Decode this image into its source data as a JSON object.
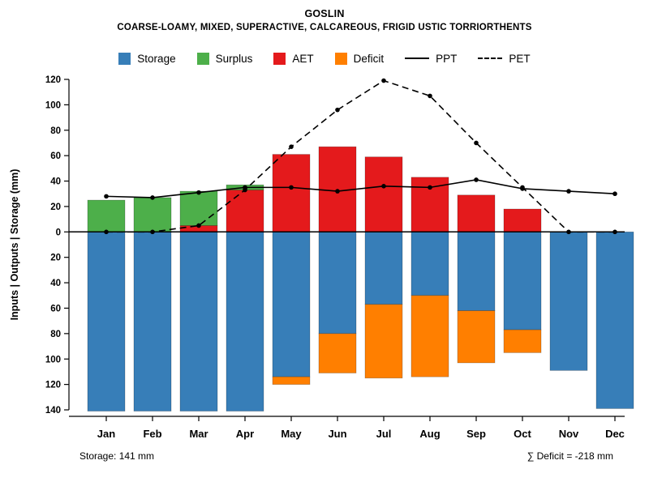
{
  "chart_data": {
    "type": "bar",
    "title": "GOSLIN",
    "subtitle": "COARSE-LOAMY, MIXED, SUPERACTIVE, CALCAREOUS, FRIGID USTIC TORRIORTHENTS",
    "ylabel": "Inputs | Outputs | Storage   (mm)",
    "categories": [
      "Jan",
      "Feb",
      "Mar",
      "Apr",
      "May",
      "Jun",
      "Jul",
      "Aug",
      "Sep",
      "Oct",
      "Nov",
      "Dec"
    ],
    "ylim": [
      -140,
      120
    ],
    "ytick_step": 20,
    "grid": false,
    "legend_position": "top",
    "series": [
      {
        "name": "Storage",
        "type": "bar",
        "direction": "down",
        "color": "#377EB8",
        "values": [
          141,
          141,
          141,
          141,
          114,
          80,
          57,
          50,
          62,
          77,
          109,
          139
        ]
      },
      {
        "name": "Surplus",
        "type": "bar",
        "direction": "up",
        "stack_on": "AET",
        "color": "#4DAF4A",
        "values": [
          25,
          27,
          27,
          4,
          0,
          0,
          0,
          0,
          0,
          0,
          0,
          0
        ]
      },
      {
        "name": "AET",
        "type": "bar",
        "direction": "up",
        "color": "#E41A1C",
        "values": [
          0,
          0,
          5,
          33,
          61,
          67,
          59,
          43,
          29,
          18,
          0,
          0
        ]
      },
      {
        "name": "Deficit",
        "type": "bar",
        "direction": "down",
        "stack_on": "Storage",
        "color": "#FF7F00",
        "values": [
          0,
          0,
          0,
          0,
          6,
          31,
          58,
          64,
          41,
          18,
          0,
          0
        ]
      },
      {
        "name": "PPT",
        "type": "line",
        "style": "solid",
        "color": "#000000",
        "values": [
          28,
          27,
          31,
          35,
          35,
          32,
          36,
          35,
          41,
          34,
          32,
          30
        ]
      },
      {
        "name": "PET",
        "type": "line",
        "style": "dashed",
        "color": "#000000",
        "values": [
          0,
          0,
          5,
          33,
          67,
          96,
          119,
          107,
          70,
          35,
          0,
          0
        ]
      }
    ],
    "legend": [
      "Storage",
      "Surplus",
      "AET",
      "Deficit",
      "PPT",
      "PET"
    ],
    "annotations": {
      "storage": "Storage: 141 mm",
      "deficit": "∑ Deficit = -218 mm"
    }
  }
}
